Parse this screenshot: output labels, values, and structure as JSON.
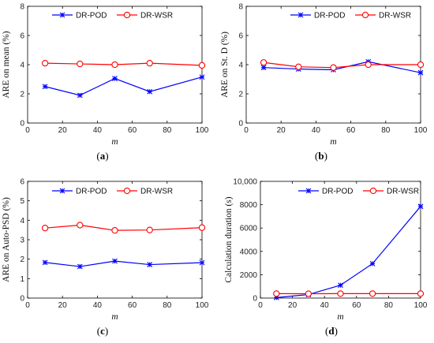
{
  "colors": {
    "pod": "#0000ff",
    "wsr": "#ff0000"
  },
  "chart_data": [
    {
      "id": "a",
      "type": "line",
      "panel_label": "a",
      "xlabel": "m",
      "ylabel": "ARE on mean (%)",
      "xlim": [
        0,
        100
      ],
      "ylim": [
        0,
        8
      ],
      "xticks": [
        0,
        20,
        40,
        60,
        80,
        100
      ],
      "yticks": [
        0,
        2,
        4,
        6,
        8
      ],
      "x": [
        10,
        30,
        50,
        70,
        100
      ],
      "series": [
        {
          "name": "DR-POD",
          "marker": "star",
          "color": "#0000ff",
          "values": [
            2.5,
            1.9,
            3.05,
            2.15,
            3.15
          ]
        },
        {
          "name": "DR-WSR",
          "marker": "circle",
          "color": "#ff0000",
          "values": [
            4.1,
            4.05,
            4.0,
            4.1,
            3.95
          ]
        }
      ],
      "legend": "top"
    },
    {
      "id": "b",
      "type": "line",
      "panel_label": "b",
      "xlabel": "m",
      "ylabel": "ARE on St. D (%)",
      "xlim": [
        0,
        100
      ],
      "ylim": [
        0,
        8
      ],
      "xticks": [
        0,
        20,
        40,
        60,
        80,
        100
      ],
      "yticks": [
        0,
        2,
        4,
        6,
        8
      ],
      "x": [
        10,
        30,
        50,
        70,
        100
      ],
      "series": [
        {
          "name": "DR-POD",
          "marker": "star",
          "color": "#0000ff",
          "values": [
            3.8,
            3.7,
            3.65,
            4.2,
            3.45
          ]
        },
        {
          "name": "DR-WSR",
          "marker": "circle",
          "color": "#ff0000",
          "values": [
            4.15,
            3.85,
            3.8,
            4.0,
            4.0
          ]
        }
      ],
      "legend": "top"
    },
    {
      "id": "c",
      "type": "line",
      "panel_label": "c",
      "xlabel": "m",
      "ylabel": "ARE on Auto-PSD (%)",
      "xlim": [
        0,
        100
      ],
      "ylim": [
        0,
        6
      ],
      "xticks": [
        0,
        20,
        40,
        60,
        80,
        100
      ],
      "yticks": [
        0,
        1,
        2,
        3,
        4,
        5,
        6
      ],
      "x": [
        10,
        30,
        50,
        70,
        100
      ],
      "series": [
        {
          "name": "DR-POD",
          "marker": "star",
          "color": "#0000ff",
          "values": [
            1.83,
            1.62,
            1.9,
            1.72,
            1.82
          ]
        },
        {
          "name": "DR-WSR",
          "marker": "circle",
          "color": "#ff0000",
          "values": [
            3.6,
            3.75,
            3.48,
            3.5,
            3.62
          ]
        }
      ],
      "legend": "top"
    },
    {
      "id": "d",
      "type": "line",
      "panel_label": "d",
      "xlabel": "m",
      "ylabel": "Calculation duration (s)",
      "xlim": [
        0,
        100
      ],
      "ylim": [
        0,
        10000
      ],
      "xticks": [
        0,
        20,
        40,
        60,
        80,
        100
      ],
      "yticks": [
        0,
        2000,
        4000,
        6000,
        8000,
        10000
      ],
      "ytick_labels": [
        "0",
        "2000",
        "4000",
        "6000",
        "8000",
        "10,000"
      ],
      "x": [
        10,
        30,
        50,
        70,
        100
      ],
      "series": [
        {
          "name": "DR-POD",
          "marker": "star",
          "color": "#0000ff",
          "values": [
            40,
            300,
            1100,
            2950,
            7850
          ]
        },
        {
          "name": "DR-WSR",
          "marker": "circle",
          "color": "#ff0000",
          "values": [
            380,
            370,
            380,
            380,
            380
          ]
        }
      ],
      "legend": "top"
    }
  ]
}
